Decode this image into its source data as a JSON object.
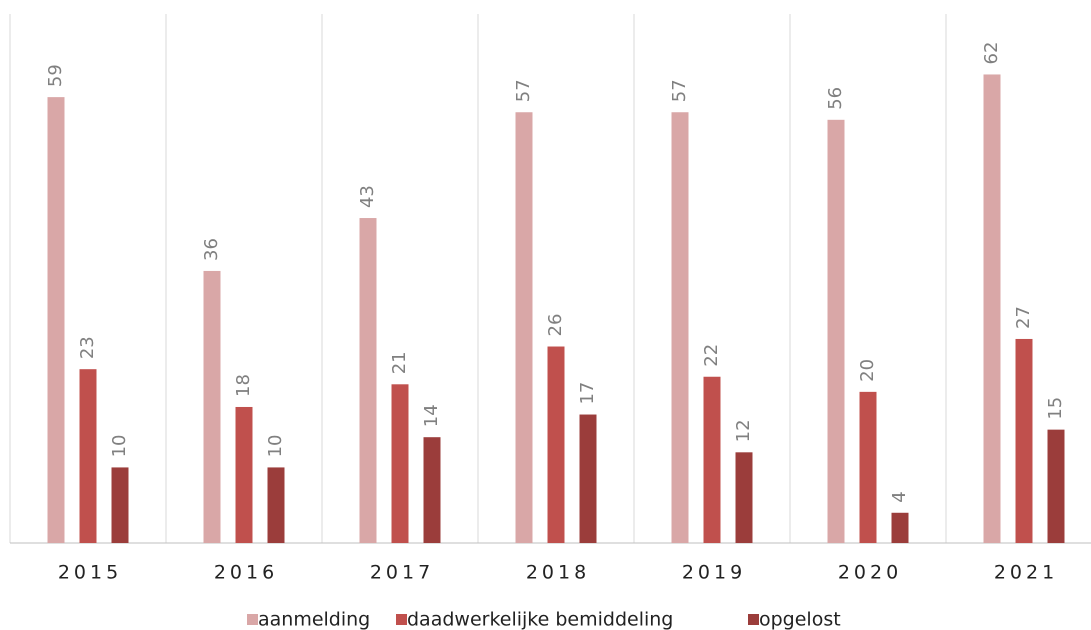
{
  "chart_data": {
    "type": "bar",
    "categories": [
      "2015",
      "2016",
      "2017",
      "2018",
      "2019",
      "2020",
      "2021"
    ],
    "series": [
      {
        "name": "aanmelding",
        "color": "#d9a7a7",
        "values": [
          59,
          36,
          43,
          57,
          57,
          56,
          62
        ]
      },
      {
        "name": "daadwerkelijke bemiddeling",
        "color": "#c0504d",
        "values": [
          23,
          18,
          21,
          26,
          22,
          20,
          27
        ]
      },
      {
        "name": "opgelost",
        "color": "#9b3d3b",
        "values": [
          10,
          10,
          14,
          17,
          12,
          4,
          15
        ]
      }
    ],
    "ylim": [
      0,
      70
    ],
    "legend": "bottom"
  }
}
